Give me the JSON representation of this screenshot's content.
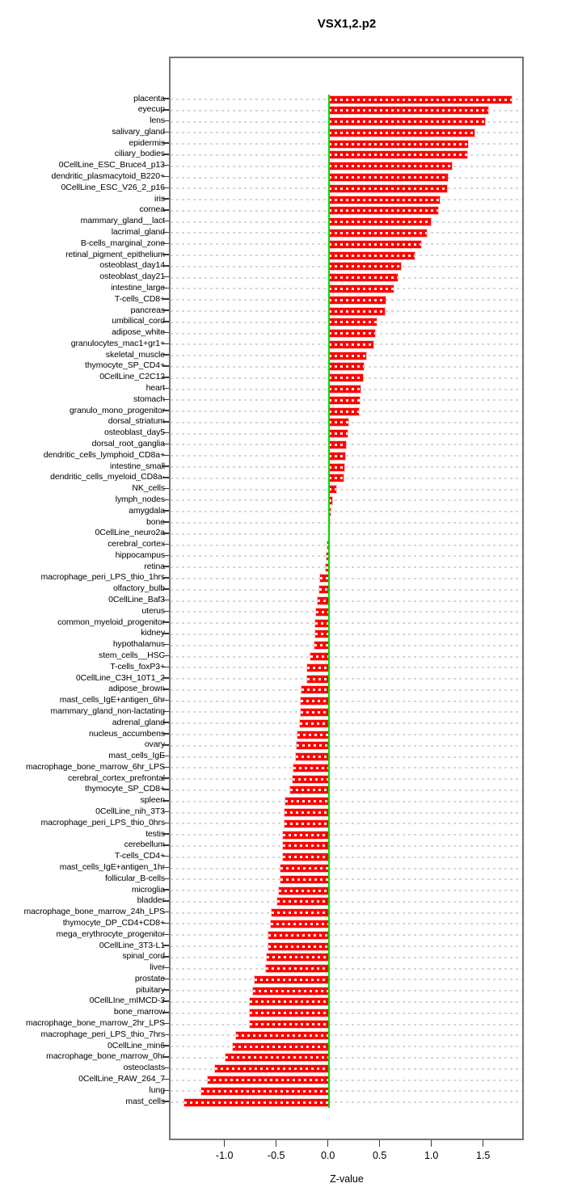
{
  "title": "VSX1,2.p2",
  "chart_data": {
    "type": "bar",
    "orientation": "horizontal",
    "title": "VSX1,2.p2",
    "xlabel": "Z-value",
    "ylabel": "",
    "xlim": [
      -1.53,
      1.9
    ],
    "xticks": [
      -1.0,
      -0.5,
      0.0,
      0.5,
      1.0,
      1.5
    ],
    "xtick_labels": [
      "-1.0",
      "-0.5",
      "0.0",
      "0.5",
      "1.0",
      "1.5"
    ],
    "grid": "dashed-horizontal",
    "legend": "none",
    "bar_color": "#ff0000",
    "zero_line_color": "#00dc00",
    "categories": [
      "placenta",
      "eyecup",
      "lens",
      "salivary_gland",
      "epidermis",
      "ciliary_bodies",
      "0CellLine_ESC_Bruce4_p13",
      "dendritic_plasmacytoid_B220+",
      "0CellLine_ESC_V26_2_p16",
      "iris",
      "cornea",
      "mammary_gland__lact",
      "lacrimal_gland",
      "B-cells_marginal_zone",
      "retinal_pigment_epithelium",
      "osteoblast_day14",
      "osteoblast_day21",
      "intestine_large",
      "T-cells_CD8+",
      "pancreas",
      "umbilical_cord",
      "adipose_white",
      "granulocytes_mac1+gr1+",
      "skeletal_muscle",
      "thymocyte_SP_CD4+",
      "0CellLine_C2C12",
      "heart",
      "stomach",
      "granulo_mono_progenitor",
      "dorsal_striatum",
      "osteoblast_day5",
      "dorsal_root_ganglia",
      "dendritic_cells_lymphoid_CD8a+",
      "intestine_small",
      "dendritic_cells_myeloid_CD8a-",
      "NK_cells",
      "lymph_nodes",
      "amygdala",
      "bone",
      "0CellLine_neuro2a",
      "cerebral_cortex",
      "hippocampus",
      "retina",
      "macrophage_peri_LPS_thio_1hrs",
      "olfactory_bulb",
      "0CellLine_Baf3",
      "uterus",
      "common_myeloid_progenitor",
      "kidney",
      "hypothalamus",
      "stem_cells__HSC",
      "T-cells_foxP3+",
      "0CellLine_C3H_10T1_2",
      "adipose_brown",
      "mast_cells_IgE+antigen_6hr",
      "mammary_gland_non-lactating",
      "adrenal_gland",
      "nucleus_accumbens",
      "ovary",
      "mast_cells_IgE",
      "macrophage_bone_marrow_6hr_LPS",
      "cerebral_cortex_prefrontal",
      "thymocyte_SP_CD8+",
      "spleen",
      "0CellLine_nih_3T3",
      "macrophage_peri_LPS_thio_0hrs",
      "testis",
      "cerebellum",
      "T-cells_CD4+",
      "mast_cells_IgE+antigen_1hr",
      "follicular_B-cells",
      "microglia",
      "bladder",
      "macrophage_bone_marrow_24h_LPS",
      "thymocyte_DP_CD4+CD8+",
      "mega_erythrocyte_progenitor",
      "0CellLine_3T3-L1",
      "spinal_cord",
      "liver",
      "prostate",
      "pituitary",
      "0CellLIne_mIMCD-3",
      "bone_marrow",
      "macrophage_bone_marrow_2hr_LPS",
      "macrophage_peri_LPS_thio_7hrs",
      "0CellLine_min6",
      "macrophage_bone_marrow_0hr",
      "osteoclasts",
      "0CellLine_RAW_264_7",
      "lung",
      "mast_cells"
    ],
    "values": [
      1.77,
      1.54,
      1.51,
      1.41,
      1.35,
      1.34,
      1.19,
      1.15,
      1.14,
      1.07,
      1.06,
      0.99,
      0.95,
      0.89,
      0.83,
      0.7,
      0.67,
      0.63,
      0.55,
      0.54,
      0.46,
      0.45,
      0.43,
      0.36,
      0.34,
      0.33,
      0.31,
      0.3,
      0.29,
      0.19,
      0.18,
      0.17,
      0.16,
      0.15,
      0.14,
      0.07,
      0.03,
      0.02,
      0.01,
      0.0,
      -0.01,
      -0.02,
      -0.03,
      -0.08,
      -0.09,
      -0.11,
      -0.12,
      -0.13,
      -0.13,
      -0.14,
      -0.18,
      -0.21,
      -0.21,
      -0.26,
      -0.27,
      -0.27,
      -0.28,
      -0.3,
      -0.31,
      -0.32,
      -0.34,
      -0.35,
      -0.37,
      -0.42,
      -0.43,
      -0.43,
      -0.44,
      -0.44,
      -0.44,
      -0.47,
      -0.47,
      -0.48,
      -0.5,
      -0.55,
      -0.56,
      -0.58,
      -0.58,
      -0.6,
      -0.61,
      -0.72,
      -0.73,
      -0.76,
      -0.76,
      -0.76,
      -0.9,
      -0.93,
      -1.0,
      -1.1,
      -1.17,
      -1.23,
      -1.4
    ]
  }
}
